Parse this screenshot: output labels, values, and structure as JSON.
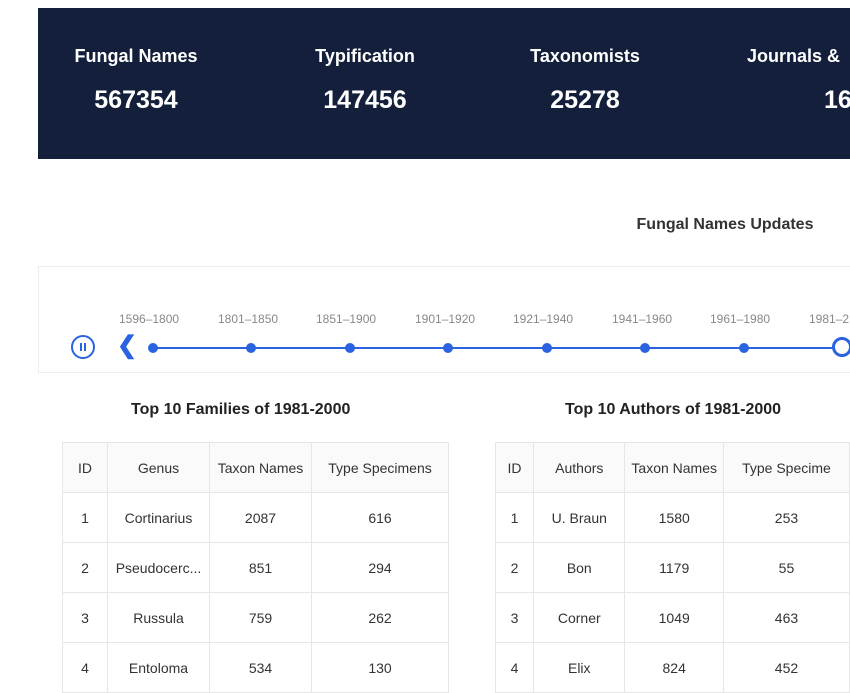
{
  "stats": [
    {
      "label": "Fungal Names",
      "value": "567354"
    },
    {
      "label": "Typification",
      "value": "147456"
    },
    {
      "label": "Taxonomists",
      "value": "25278"
    },
    {
      "label": "Journals &",
      "value": "16"
    }
  ],
  "updates_title": "Fungal Names Updates",
  "timeline": {
    "periods": [
      "1596–1800",
      "1801–1850",
      "1851–1900",
      "1901–1920",
      "1921–1940",
      "1941–1960",
      "1961–1980",
      "1981–2"
    ]
  },
  "families": {
    "title": "Top 10 Families of 1981-2000",
    "headers": [
      "ID",
      "Genus",
      "Taxon Names",
      "Type Specimens"
    ],
    "rows": [
      [
        "1",
        "Cortinarius",
        "2087",
        "616"
      ],
      [
        "2",
        "Pseudocerc...",
        "851",
        "294"
      ],
      [
        "3",
        "Russula",
        "759",
        "262"
      ],
      [
        "4",
        "Entoloma",
        "534",
        "130"
      ]
    ]
  },
  "authors": {
    "title": "Top 10 Authors of 1981-2000",
    "headers": [
      "ID",
      "Authors",
      "Taxon Names",
      "Type Specime"
    ],
    "rows": [
      [
        "1",
        "U. Braun",
        "1580",
        "253"
      ],
      [
        "2",
        "Bon",
        "1179",
        "55"
      ],
      [
        "3",
        "Corner",
        "1049",
        "463"
      ],
      [
        "4",
        "Elix",
        "824",
        "452"
      ]
    ]
  },
  "colors": {
    "banner": "#14203b",
    "accent": "#2a62e0"
  }
}
